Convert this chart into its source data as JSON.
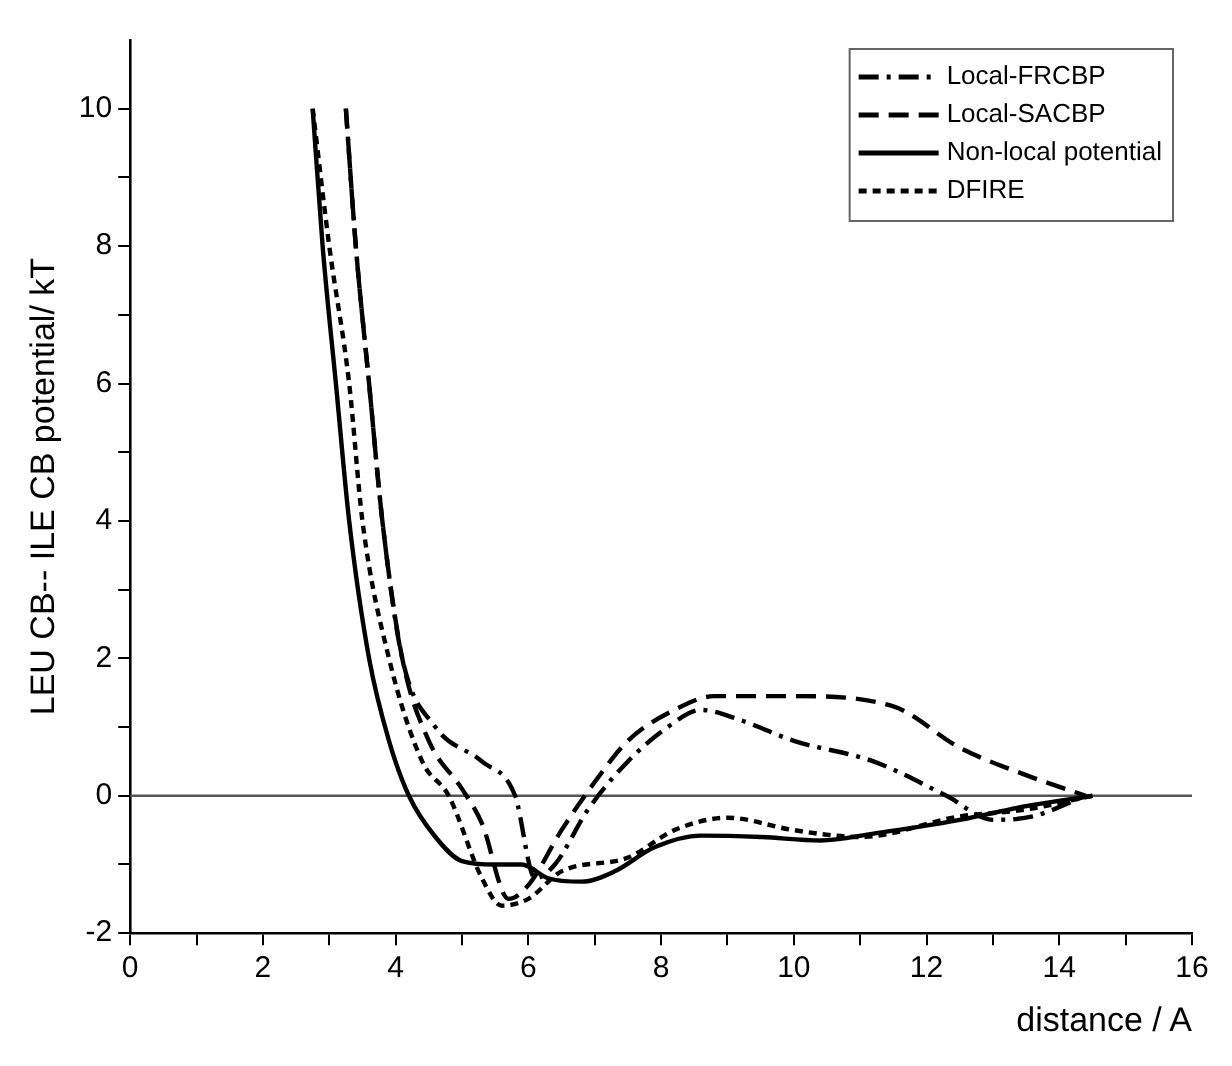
{
  "chart_data": {
    "type": "line",
    "xlabel": "distance / A",
    "ylabel": "LEU CB-- ILE CB potential/ kT",
    "xlim": [
      0,
      16
    ],
    "ylim": [
      -2,
      11
    ],
    "xticks": [
      0,
      {
        "value": 1,
        "label": null
      },
      2,
      {
        "value": 3,
        "label": null
      },
      4,
      {
        "value": 5,
        "label": null
      },
      6,
      {
        "value": 7,
        "label": null
      },
      8,
      {
        "value": 9,
        "label": null
      },
      10,
      {
        "value": 11,
        "label": null
      },
      12,
      {
        "value": 13,
        "label": null
      },
      14,
      {
        "value": 15,
        "label": null
      },
      16
    ],
    "yticks": [
      -2,
      {
        "value": -1,
        "label": null
      },
      0,
      {
        "value": 1,
        "label": null
      },
      2,
      {
        "value": 3,
        "label": null
      },
      4,
      {
        "value": 5,
        "label": null
      },
      6,
      {
        "value": 7,
        "label": null
      },
      8,
      {
        "value": 9,
        "label": null
      },
      10
    ],
    "grid": false,
    "legend": "top right",
    "marker": "none",
    "ref_lines": [
      {
        "axis": "y",
        "value": 0,
        "color": "#555555"
      }
    ],
    "series": [
      {
        "name": "Local-FRCBP",
        "color": "#000000",
        "line_style": "dashdot",
        "x": [
          3.25,
          3.4,
          3.6,
          3.8,
          4.1,
          4.6,
          5.3,
          5.8,
          6.1,
          6.4,
          6.9,
          7.5,
          8.1,
          8.6,
          9.2,
          10,
          11.2,
          12.3,
          13,
          13.6,
          14.4
        ],
        "values": [
          10,
          8,
          6,
          4,
          2,
          1,
          0.5,
          0,
          -1.2,
          -1.0,
          -0.2,
          0.5,
          1.0,
          1.25,
          1.1,
          0.8,
          0.5,
          0,
          -0.35,
          -0.3,
          0
        ]
      },
      {
        "name": "Local-SACBP",
        "color": "#000000",
        "line_style": "dashed",
        "x": [
          3.25,
          3.4,
          3.6,
          3.8,
          4.1,
          4.5,
          5.0,
          5.3,
          5.7,
          6.0,
          6.5,
          7.0,
          7.5,
          8.2,
          8.8,
          10,
          11.5,
          12.5,
          13.5,
          14.4
        ],
        "values": [
          10,
          8,
          6,
          4,
          2,
          0.8,
          0.1,
          -0.4,
          -1.5,
          -1.3,
          -0.5,
          0.2,
          0.8,
          1.25,
          1.45,
          1.45,
          1.3,
          0.7,
          0.3,
          0
        ]
      },
      {
        "name": "Non-local potential",
        "color": "#000000",
        "line_style": "solid",
        "x": [
          2.75,
          2.9,
          3.1,
          3.3,
          3.6,
          3.9,
          4.2,
          4.6,
          5.0,
          5.5,
          5.9,
          6.3,
          6.8,
          7.3,
          7.9,
          8.6,
          9.5,
          10.4,
          11.2,
          12.5,
          13.5,
          14.5
        ],
        "values": [
          10,
          8,
          6,
          4,
          2,
          0.8,
          0,
          -0.6,
          -0.95,
          -1.0,
          -1.0,
          -1.2,
          -1.25,
          -1.1,
          -0.75,
          -0.58,
          -0.6,
          -0.65,
          -0.55,
          -0.35,
          -0.15,
          0
        ]
      },
      {
        "name": "DFIRE",
        "color": "#000000",
        "line_style": "dotted",
        "x": [
          2.75,
          3.0,
          3.3,
          3.5,
          3.9,
          4.4,
          4.8,
          5.3,
          5.6,
          6.0,
          6.5,
          7.5,
          8.2,
          9.0,
          10,
          11,
          12.5,
          13.5,
          14.5
        ],
        "values": [
          10,
          8,
          6,
          4,
          2,
          0.5,
          0,
          -1.2,
          -1.6,
          -1.5,
          -1.1,
          -0.9,
          -0.5,
          -0.32,
          -0.5,
          -0.6,
          -0.3,
          -0.2,
          0
        ]
      }
    ]
  }
}
